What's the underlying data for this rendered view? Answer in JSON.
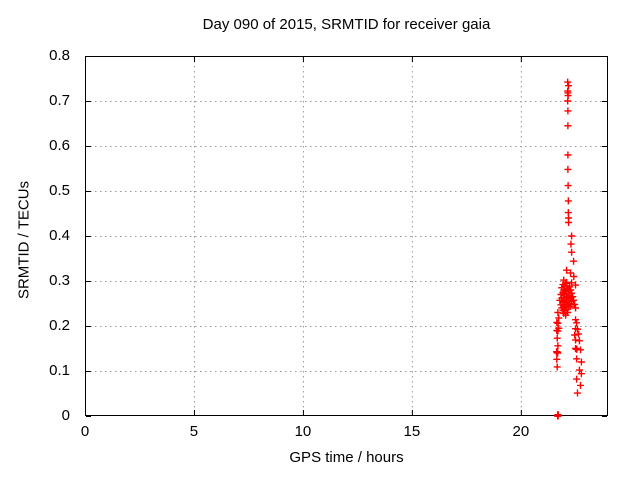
{
  "title": "Day 090 of 2015, SRMTID for receiver gaia",
  "colors": {
    "background": "#ffffff",
    "text": "#000000",
    "axis": "#000000",
    "grid": "#999999",
    "points": "#ff0000"
  },
  "chart_data": {
    "type": "scatter",
    "title": "Day 090 of 2015, SRMTID for receiver gaia",
    "xlabel": "GPS time / hours",
    "ylabel": "SRMTID / TECUs",
    "xlim": [
      0,
      24
    ],
    "ylim": [
      0,
      0.8
    ],
    "xtick_values": [
      0,
      5,
      10,
      15,
      20
    ],
    "xtick_labels": [
      "0",
      "5",
      "10",
      "15",
      "20"
    ],
    "ytick_values": [
      0,
      0.1,
      0.2,
      0.3,
      0.4,
      0.5,
      0.6,
      0.7,
      0.8
    ],
    "ytick_labels": [
      "0",
      "0.1",
      "0.2",
      "0.3",
      "0.4",
      "0.5",
      "0.6",
      "0.7",
      "0.8"
    ],
    "grid": true,
    "legend": false,
    "marker": "plus",
    "series": [
      {
        "name": "SRMTID",
        "color": "#ff0000",
        "points": [
          [
            22.15,
            0.742
          ],
          [
            22.19,
            0.734
          ],
          [
            22.15,
            0.722
          ],
          [
            22.16,
            0.718
          ],
          [
            22.17,
            0.712
          ],
          [
            22.15,
            0.7
          ],
          [
            22.16,
            0.678
          ],
          [
            22.16,
            0.645
          ],
          [
            22.16,
            0.58
          ],
          [
            22.16,
            0.548
          ],
          [
            22.17,
            0.512
          ],
          [
            22.18,
            0.478
          ],
          [
            22.18,
            0.452
          ],
          [
            22.19,
            0.44
          ],
          [
            22.19,
            0.43
          ],
          [
            22.33,
            0.4
          ],
          [
            22.3,
            0.382
          ],
          [
            22.33,
            0.364
          ],
          [
            22.42,
            0.344
          ],
          [
            22.1,
            0.324
          ],
          [
            22.28,
            0.318
          ],
          [
            22.43,
            0.31
          ],
          [
            21.97,
            0.302
          ],
          [
            22.1,
            0.297
          ],
          [
            22.33,
            0.296
          ],
          [
            22.51,
            0.291
          ],
          [
            21.79,
            0.257
          ],
          [
            21.84,
            0.27
          ],
          [
            21.84,
            0.247
          ],
          [
            21.88,
            0.285
          ],
          [
            21.88,
            0.262
          ],
          [
            21.88,
            0.24
          ],
          [
            21.93,
            0.292
          ],
          [
            21.93,
            0.274
          ],
          [
            21.93,
            0.255
          ],
          [
            21.93,
            0.235
          ],
          [
            21.97,
            0.28
          ],
          [
            21.97,
            0.263
          ],
          [
            21.97,
            0.244
          ],
          [
            21.97,
            0.228
          ],
          [
            22.02,
            0.288
          ],
          [
            22.02,
            0.27
          ],
          [
            22.02,
            0.252
          ],
          [
            22.02,
            0.235
          ],
          [
            22.06,
            0.295
          ],
          [
            22.06,
            0.277
          ],
          [
            22.06,
            0.258
          ],
          [
            22.06,
            0.241
          ],
          [
            22.06,
            0.224
          ],
          [
            22.11,
            0.29
          ],
          [
            22.11,
            0.272
          ],
          [
            22.11,
            0.254
          ],
          [
            22.11,
            0.237
          ],
          [
            22.15,
            0.283
          ],
          [
            22.15,
            0.265
          ],
          [
            22.15,
            0.248
          ],
          [
            22.15,
            0.23
          ],
          [
            22.2,
            0.278
          ],
          [
            22.2,
            0.26
          ],
          [
            22.2,
            0.242
          ],
          [
            22.24,
            0.287
          ],
          [
            22.24,
            0.268
          ],
          [
            22.24,
            0.25
          ],
          [
            22.29,
            0.28
          ],
          [
            22.29,
            0.262
          ],
          [
            22.29,
            0.244
          ],
          [
            22.33,
            0.273
          ],
          [
            22.33,
            0.255
          ],
          [
            22.38,
            0.265
          ],
          [
            22.42,
            0.257
          ],
          [
            22.47,
            0.248
          ],
          [
            22.51,
            0.24
          ],
          [
            21.7,
            0.23
          ],
          [
            21.74,
            0.218
          ],
          [
            21.65,
            0.208
          ],
          [
            21.7,
            0.206
          ],
          [
            21.74,
            0.195
          ],
          [
            21.65,
            0.19
          ],
          [
            21.7,
            0.189
          ],
          [
            21.67,
            0.173
          ],
          [
            21.7,
            0.156
          ],
          [
            21.64,
            0.143
          ],
          [
            21.66,
            0.141
          ],
          [
            21.68,
            0.142
          ],
          [
            21.69,
            0.14
          ],
          [
            21.65,
            0.126
          ],
          [
            21.67,
            0.109
          ],
          [
            22.51,
            0.214
          ],
          [
            22.56,
            0.207
          ],
          [
            22.51,
            0.194
          ],
          [
            22.6,
            0.193
          ],
          [
            22.47,
            0.18
          ],
          [
            22.65,
            0.182
          ],
          [
            22.51,
            0.169
          ],
          [
            22.69,
            0.167
          ],
          [
            22.51,
            0.15
          ],
          [
            22.55,
            0.149
          ],
          [
            22.57,
            0.148
          ],
          [
            22.74,
            0.147
          ],
          [
            22.56,
            0.127
          ],
          [
            22.78,
            0.12
          ],
          [
            22.69,
            0.102
          ],
          [
            22.78,
            0.094
          ],
          [
            22.56,
            0.082
          ],
          [
            22.74,
            0.068
          ],
          [
            22.6,
            0.051
          ],
          [
            21.69,
            0.0
          ],
          [
            21.7,
            0.0
          ],
          [
            21.71,
            0.0
          ],
          [
            21.7,
            0.003
          ],
          [
            21.71,
            0.003
          ]
        ]
      }
    ]
  }
}
